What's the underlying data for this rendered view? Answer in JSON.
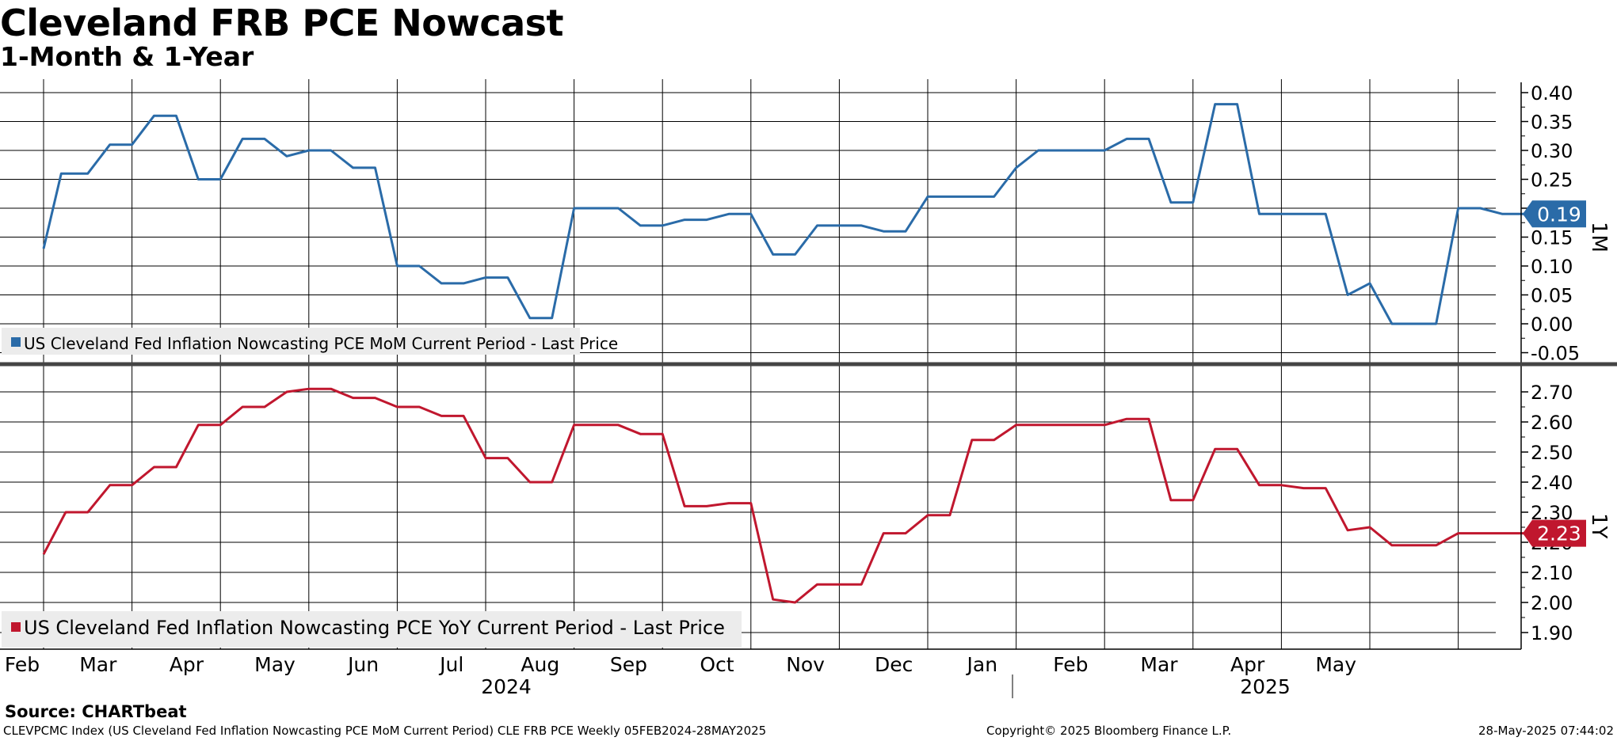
{
  "title": "Cleveland FRB PCE Nowcast",
  "subtitle": "1-Month & 1-Year",
  "source": "Source: CHARTbeat",
  "footer": {
    "left": "CLEVPCMC Index (US Cleveland Fed Inflation Nowcasting PCE MoM Current Period) CLE FRB PCE  Weekly 05FEB2024-28MAY2025",
    "middle": "Copyright© 2025 Bloomberg Finance L.P.",
    "right": "28-May-2025 07:44:02"
  },
  "colors": {
    "mom": "#2a6ba8",
    "yoy": "#c0172e",
    "grid": "#000000",
    "legend_bg": "#ececec"
  },
  "chart_data": [
    {
      "type": "line",
      "panel": "top",
      "side_label": "1M",
      "legend": "US Cleveland Fed Inflation Nowcasting PCE MoM Current Period - Last Price",
      "last_value_label": "0.19",
      "last_value": 0.19,
      "ylim": [
        -0.05,
        0.42
      ],
      "yticks": [
        "0.40",
        "0.35",
        "0.30",
        "0.25",
        "0.20",
        "0.15",
        "0.10",
        "0.05",
        "0.00",
        "-0.05"
      ],
      "series": [
        {
          "name": "PCE MoM",
          "points": [
            [
              0.0,
              0.13
            ],
            [
              0.2,
              0.26
            ],
            [
              0.5,
              0.26
            ],
            [
              0.75,
              0.31
            ],
            [
              1.0,
              0.31
            ],
            [
              1.25,
              0.36
            ],
            [
              1.5,
              0.36
            ],
            [
              1.75,
              0.25
            ],
            [
              2.0,
              0.25
            ],
            [
              2.25,
              0.32
            ],
            [
              2.5,
              0.32
            ],
            [
              2.75,
              0.29
            ],
            [
              3.0,
              0.3
            ],
            [
              3.25,
              0.3
            ],
            [
              3.5,
              0.27
            ],
            [
              3.75,
              0.27
            ],
            [
              4.0,
              0.1
            ],
            [
              4.25,
              0.1
            ],
            [
              4.5,
              0.07
            ],
            [
              4.75,
              0.07
            ],
            [
              5.0,
              0.08
            ],
            [
              5.25,
              0.08
            ],
            [
              5.5,
              0.01
            ],
            [
              5.75,
              0.01
            ],
            [
              6.0,
              0.2
            ],
            [
              6.5,
              0.2
            ],
            [
              6.75,
              0.17
            ],
            [
              7.0,
              0.17
            ],
            [
              7.25,
              0.18
            ],
            [
              7.5,
              0.18
            ],
            [
              7.75,
              0.19
            ],
            [
              8.0,
              0.19
            ],
            [
              8.25,
              0.12
            ],
            [
              8.5,
              0.12
            ],
            [
              8.75,
              0.17
            ],
            [
              9.25,
              0.17
            ],
            [
              9.5,
              0.16
            ],
            [
              9.75,
              0.16
            ],
            [
              10.0,
              0.22
            ],
            [
              10.75,
              0.22
            ],
            [
              11.0,
              0.27
            ],
            [
              11.25,
              0.3
            ],
            [
              12.0,
              0.3
            ],
            [
              12.25,
              0.32
            ],
            [
              12.5,
              0.32
            ],
            [
              12.75,
              0.21
            ],
            [
              13.0,
              0.21
            ],
            [
              13.25,
              0.38
            ],
            [
              13.5,
              0.38
            ],
            [
              13.75,
              0.19
            ],
            [
              14.5,
              0.19
            ],
            [
              14.75,
              0.05
            ],
            [
              15.0,
              0.07
            ],
            [
              15.25,
              0.0
            ],
            [
              15.75,
              0.0
            ],
            [
              16.0,
              0.2
            ],
            [
              16.25,
              0.2
            ],
            [
              16.5,
              0.19
            ],
            [
              17.0,
              0.19
            ]
          ]
        }
      ]
    },
    {
      "type": "line",
      "panel": "bottom",
      "side_label": "1Y",
      "legend": "US Cleveland Fed Inflation Nowcasting PCE YoY Current Period - Last Price",
      "last_value_label": "2.23",
      "last_value": 2.23,
      "ylim": [
        1.85,
        2.77
      ],
      "yticks": [
        "2.70",
        "2.60",
        "2.50",
        "2.40",
        "2.30",
        "2.20",
        "2.10",
        "2.00",
        "1.90"
      ],
      "series": [
        {
          "name": "PCE YoY",
          "points": [
            [
              0.0,
              2.16
            ],
            [
              0.25,
              2.3
            ],
            [
              0.5,
              2.3
            ],
            [
              0.75,
              2.39
            ],
            [
              1.0,
              2.39
            ],
            [
              1.25,
              2.45
            ],
            [
              1.5,
              2.45
            ],
            [
              1.75,
              2.59
            ],
            [
              2.0,
              2.59
            ],
            [
              2.25,
              2.65
            ],
            [
              2.5,
              2.65
            ],
            [
              2.75,
              2.7
            ],
            [
              3.0,
              2.71
            ],
            [
              3.25,
              2.71
            ],
            [
              3.5,
              2.68
            ],
            [
              3.75,
              2.68
            ],
            [
              4.0,
              2.65
            ],
            [
              4.25,
              2.65
            ],
            [
              4.5,
              2.62
            ],
            [
              4.75,
              2.62
            ],
            [
              5.0,
              2.48
            ],
            [
              5.25,
              2.48
            ],
            [
              5.5,
              2.4
            ],
            [
              5.75,
              2.4
            ],
            [
              6.0,
              2.59
            ],
            [
              6.5,
              2.59
            ],
            [
              6.75,
              2.56
            ],
            [
              7.0,
              2.56
            ],
            [
              7.25,
              2.32
            ],
            [
              7.5,
              2.32
            ],
            [
              7.75,
              2.33
            ],
            [
              8.0,
              2.33
            ],
            [
              8.25,
              2.01
            ],
            [
              8.5,
              2.0
            ],
            [
              8.75,
              2.06
            ],
            [
              9.25,
              2.06
            ],
            [
              9.5,
              2.23
            ],
            [
              9.75,
              2.23
            ],
            [
              10.0,
              2.29
            ],
            [
              10.25,
              2.29
            ],
            [
              10.5,
              2.54
            ],
            [
              10.75,
              2.54
            ],
            [
              11.0,
              2.59
            ],
            [
              12.0,
              2.59
            ],
            [
              12.25,
              2.61
            ],
            [
              12.5,
              2.61
            ],
            [
              12.75,
              2.34
            ],
            [
              13.0,
              2.34
            ],
            [
              13.25,
              2.51
            ],
            [
              13.5,
              2.51
            ],
            [
              13.75,
              2.39
            ],
            [
              14.0,
              2.39
            ],
            [
              14.25,
              2.38
            ],
            [
              14.5,
              2.38
            ],
            [
              14.75,
              2.24
            ],
            [
              15.0,
              2.25
            ],
            [
              15.25,
              2.19
            ],
            [
              15.75,
              2.19
            ],
            [
              16.0,
              2.23
            ],
            [
              17.0,
              2.23
            ]
          ]
        }
      ]
    }
  ],
  "x_axis": {
    "months": [
      "Feb",
      "Mar",
      "Apr",
      "May",
      "Jun",
      "Jul",
      "Aug",
      "Sep",
      "Oct",
      "Nov",
      "Dec",
      "Jan",
      "Feb",
      "Mar",
      "Apr",
      "May"
    ],
    "years": [
      "2024",
      "2025"
    ]
  }
}
